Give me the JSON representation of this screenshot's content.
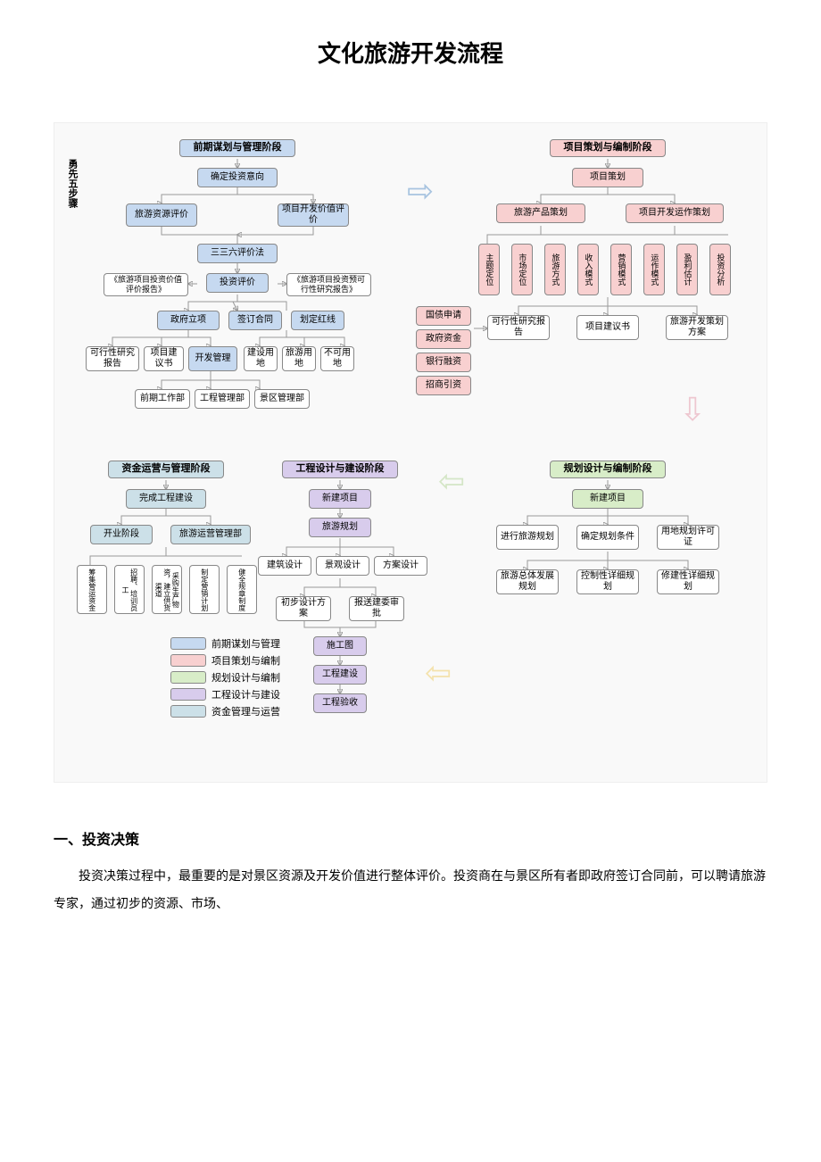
{
  "title": "文化旅游开发流程",
  "colors": {
    "phase1": "#c6d9f0",
    "phase2": "#f8d0d0",
    "phase3": "#d8edc8",
    "phase4": "#d8ccec",
    "phase5": "#cce0e8",
    "legend_bg": "#f2f2f2",
    "arrow_blue": "#6699cc",
    "arrow_pink": "#e6a0b0",
    "arrow_green": "#b8d8a0",
    "arrow_yellow": "#f0d070"
  },
  "side_label": "勇先五步骤",
  "phases": {
    "p1": "前期谋划与管理阶段",
    "p2": "项目策划与编制阶段",
    "p3": "规划设计与编制阶段",
    "p4": "工程设计与建设阶段",
    "p5": "资金运营与管理阶段"
  },
  "p1": {
    "a": "确定投资意向",
    "b": "旅游资源评价",
    "c": "项目开发价值评价",
    "d": "三三六评价法",
    "e": "《旅游项目投资价值评价报告》",
    "f": "投资评价",
    "g": "《旅游项目投资预可行性研究报告》",
    "h": "政府立项",
    "i": "签订合同",
    "j": "划定红线",
    "k": "可行性研究报告",
    "l": "项目建议书",
    "m": "开发管理",
    "n": "建设用地",
    "o": "旅游用地",
    "p": "不可用地",
    "q": "前期工作部",
    "r": "工程管理部",
    "s": "景区管理部"
  },
  "p2": {
    "a": "项目策划",
    "b": "旅游产品策划",
    "c": "项目开发运作策划",
    "cols": [
      "主题定位",
      "市场定位",
      "旅游方式",
      "收入模式",
      "营销模式",
      "运作模式",
      "盈利估计",
      "投资分析"
    ],
    "d": "可行性研究报告",
    "e": "项目建议书",
    "f": "旅游开发策划方案",
    "funds": [
      "国债申请",
      "政府资金",
      "银行融资",
      "招商引资"
    ]
  },
  "p3": {
    "a": "新建项目",
    "b": "进行旅游规划",
    "c": "确定规划条件",
    "d": "用地规划许可证",
    "e": "旅游总体发展规划",
    "f": "控制性详细规划",
    "g": "修建性详细规划"
  },
  "p4": {
    "a": "新建项目",
    "b": "旅游规划",
    "c": "建筑设计",
    "d": "景观设计",
    "e": "方案设计",
    "f": "初步设计方案",
    "g": "报送建委审批",
    "h": "施工图",
    "i": "工程建设",
    "j": "工程验收"
  },
  "p5": {
    "a": "完成工程建设",
    "b": "开业阶段",
    "c": "旅游运营管理部",
    "cols": [
      "筹集营运资金",
      "招聘、培训员工",
      "采购生产物资，建立供货渠道",
      "制定营销计划",
      "健全规章制度"
    ]
  },
  "legend": [
    {
      "c": "phase1",
      "t": "前期谋划与管理"
    },
    {
      "c": "phase2",
      "t": "项目策划与编制"
    },
    {
      "c": "phase3",
      "t": "规划设计与编制"
    },
    {
      "c": "phase4",
      "t": "工程设计与建设"
    },
    {
      "c": "phase5",
      "t": "资金管理与运营"
    }
  ],
  "body": {
    "h": "一、投资决策",
    "p": "投资决策过程中，最重要的是对景区资源及开发价值进行整体评价。投资商在与景区所有者即政府签订合同前，可以聘请旅游专家，通过初步的资源、市场、"
  }
}
